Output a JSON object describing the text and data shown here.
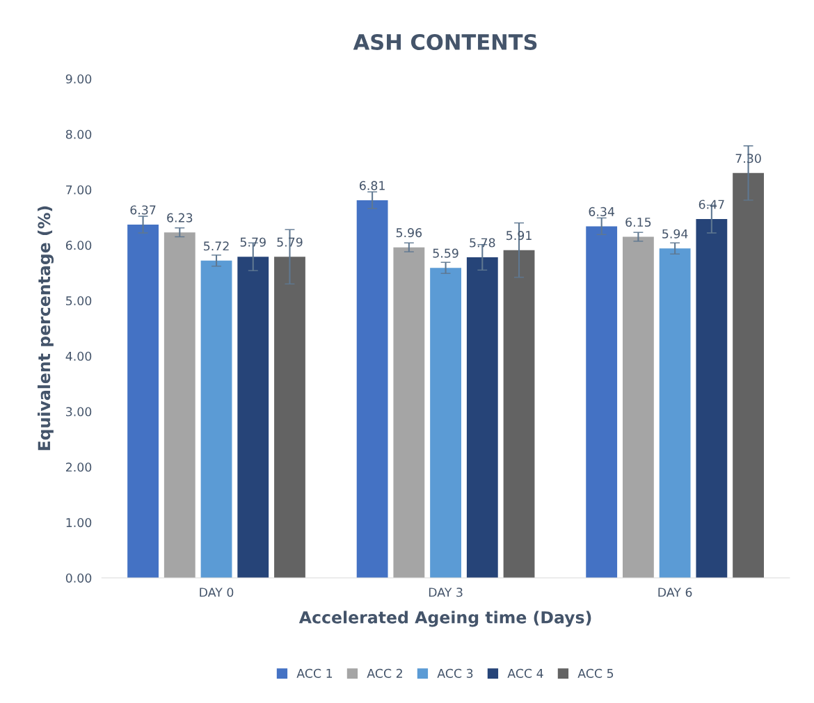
{
  "chart_data": {
    "type": "bar",
    "title": "ASH CONTENTS",
    "xlabel": "Accelerated Ageing time (Days)",
    "ylabel": "Equivalent percentage (%)",
    "categories": [
      "DAY 0",
      "DAY 3",
      "DAY 6"
    ],
    "series": [
      {
        "name": "ACC 1",
        "color": "#4472c4",
        "values": [
          6.37,
          6.81,
          6.34
        ],
        "errors": [
          0.15,
          0.15,
          0.15
        ],
        "value_labels": [
          "6.37",
          "6.81",
          "6.34"
        ]
      },
      {
        "name": "ACC 2",
        "color": "#a5a5a5",
        "values": [
          6.23,
          5.96,
          6.15
        ],
        "errors": [
          0.08,
          0.08,
          0.08
        ],
        "value_labels": [
          "6.23",
          "5.96",
          "6.15"
        ]
      },
      {
        "name": "ACC 3",
        "color": "#5b9bd5",
        "values": [
          5.72,
          5.59,
          5.94
        ],
        "errors": [
          0.1,
          0.1,
          0.1
        ],
        "value_labels": [
          "5.72",
          "5.59",
          "5.94"
        ]
      },
      {
        "name": "ACC 4",
        "color": "#264478",
        "values": [
          5.79,
          5.78,
          6.47
        ],
        "errors": [
          0.25,
          0.23,
          0.25
        ],
        "value_labels": [
          "5.79",
          "5.78",
          "6.47"
        ]
      },
      {
        "name": "ACC 5",
        "color": "#636363",
        "values": [
          5.79,
          5.91,
          7.3
        ],
        "errors": [
          0.49,
          0.49,
          0.49
        ],
        "value_labels": [
          "5.79",
          "5.91",
          "7.30"
        ]
      }
    ],
    "ylim": [
      0,
      9
    ],
    "yticks": [
      {
        "value": 0,
        "label": "0.00"
      },
      {
        "value": 1,
        "label": "1.00"
      },
      {
        "value": 2,
        "label": "2.00"
      },
      {
        "value": 3,
        "label": "3.00"
      },
      {
        "value": 4,
        "label": "4.00"
      },
      {
        "value": 5,
        "label": "5.00"
      },
      {
        "value": 6,
        "label": "6.00"
      },
      {
        "value": 7,
        "label": "7.00"
      },
      {
        "value": 8,
        "label": "8.00"
      },
      {
        "value": 9,
        "label": "9.00"
      }
    ],
    "grid": false,
    "legend": "bottom"
  }
}
